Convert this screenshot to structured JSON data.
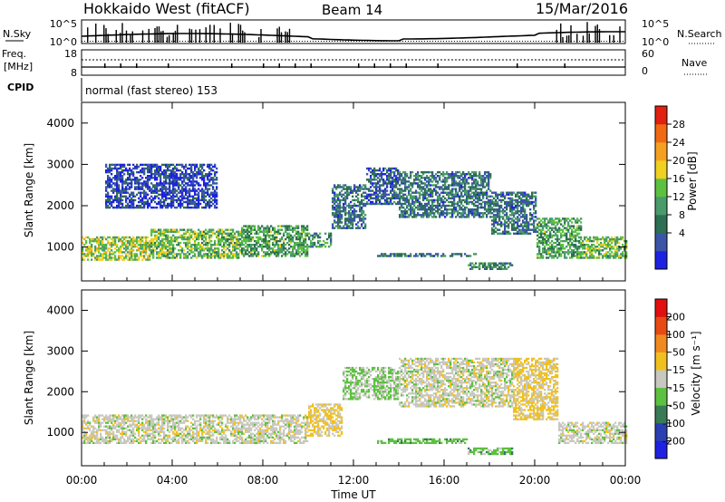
{
  "header": {
    "radar": "Hokkaido West (fitACF)",
    "beam": "Beam 14",
    "date": "15/Mar/2016"
  },
  "noise_panel": {
    "left_label": "N.Sky",
    "right_label": "N.Search",
    "left_ticks": [
      "10^5",
      "10^0"
    ],
    "right_ticks": [
      "10^5",
      "10^0"
    ]
  },
  "freq_panel": {
    "left_label_1": "Freq.",
    "left_label_2": "[MHz]",
    "right_label": "Nave",
    "left_ticks": [
      "18",
      "8"
    ],
    "right_ticks": [
      "60",
      "0"
    ]
  },
  "cpid_panel": {
    "label": "CPID",
    "text": "normal (fast stereo) 153"
  },
  "x_axis": {
    "label": "Time UT",
    "ticks": [
      "00:00",
      "04:00",
      "08:00",
      "12:00",
      "16:00",
      "20:00",
      "00:00"
    ]
  },
  "power_panel": {
    "ylabel": "Slant Range [km]",
    "yticks": [
      "4000",
      "3000",
      "2000",
      "1000"
    ],
    "colorbar_label": "Power [dB]",
    "colorbar_ticks": [
      "28",
      "24",
      "20",
      "16",
      "12",
      "8",
      "4"
    ],
    "colors": [
      "#1e22e0",
      "#3a55a8",
      "#2e6e52",
      "#4a9a6a",
      "#5cc040",
      "#f0d020",
      "#f5a020",
      "#f06a14",
      "#e02010"
    ]
  },
  "velocity_panel": {
    "ylabel": "Slant Range [km]",
    "yticks": [
      "4000",
      "3000",
      "2000",
      "1000"
    ],
    "colorbar_label": "Velocity [m s⁻¹]",
    "colorbar_ticks": [
      "200",
      "100",
      "50",
      "15",
      "-15",
      "-50",
      "-100",
      "-200"
    ],
    "colors": [
      "#1e22e0",
      "#2a40b0",
      "#3a7a56",
      "#5cc040",
      "#c8c8c0",
      "#f0c020",
      "#f08a20",
      "#e84a14",
      "#e01010"
    ]
  },
  "chart_data": {
    "type": "heatmap",
    "x_unit": "hours UT",
    "y_unit": "km",
    "xlim": [
      0,
      24
    ],
    "ylim": [
      180,
      4500
    ],
    "power_range_dB": [
      0,
      30
    ],
    "velocity_range_ms": [
      -250,
      250
    ],
    "power_bands": [
      {
        "t": [
          0.0,
          3.0
        ],
        "r": [
          650,
          1250
        ],
        "power": 16
      },
      {
        "t": [
          3.0,
          7.0
        ],
        "r": [
          700,
          1400
        ],
        "power": 14
      },
      {
        "t": [
          7.0,
          10.0
        ],
        "r": [
          750,
          1500
        ],
        "power": 12
      },
      {
        "t": [
          10.0,
          11.0
        ],
        "r": [
          950,
          1350
        ],
        "power": 10
      },
      {
        "t": [
          11.0,
          12.5
        ],
        "r": [
          1400,
          2500
        ],
        "power": 8
      },
      {
        "t": [
          12.5,
          14.0
        ],
        "r": [
          2000,
          2900
        ],
        "power": 6
      },
      {
        "t": [
          14.0,
          18.0
        ],
        "r": [
          1700,
          2800
        ],
        "power": 8
      },
      {
        "t": [
          18.0,
          20.0
        ],
        "r": [
          1300,
          2300
        ],
        "power": 8
      },
      {
        "t": [
          20.0,
          22.0
        ],
        "r": [
          700,
          1700
        ],
        "power": 12
      },
      {
        "t": [
          22.0,
          24.0
        ],
        "r": [
          700,
          1250
        ],
        "power": 14
      },
      {
        "t": [
          13.0,
          17.5
        ],
        "r": [
          750,
          850
        ],
        "power": 8
      },
      {
        "t": [
          17.0,
          19.0
        ],
        "r": [
          450,
          600
        ],
        "power": 10
      },
      {
        "t": [
          1.0,
          6.0
        ],
        "r": [
          1900,
          3000
        ],
        "power": 4
      }
    ],
    "velocity_bands": [
      {
        "t": [
          0.0,
          10.0
        ],
        "r": [
          700,
          1400
        ],
        "velocity": 0
      },
      {
        "t": [
          10.0,
          11.5
        ],
        "r": [
          900,
          1700
        ],
        "velocity": 40
      },
      {
        "t": [
          11.5,
          14.0
        ],
        "r": [
          1800,
          2600
        ],
        "velocity": -30
      },
      {
        "t": [
          14.0,
          19.0
        ],
        "r": [
          1600,
          2800
        ],
        "velocity": 0
      },
      {
        "t": [
          19.0,
          21.0
        ],
        "r": [
          1300,
          2800
        ],
        "velocity": 40
      },
      {
        "t": [
          21.0,
          24.0
        ],
        "r": [
          700,
          1250
        ],
        "velocity": 0
      },
      {
        "t": [
          13.0,
          17.0
        ],
        "r": [
          700,
          850
        ],
        "velocity": -60
      },
      {
        "t": [
          17.0,
          19.0
        ],
        "r": [
          450,
          600
        ],
        "velocity": -60
      }
    ]
  }
}
